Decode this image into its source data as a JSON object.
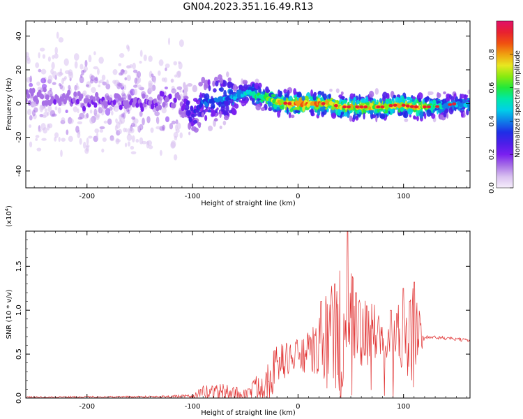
{
  "figure": {
    "title": "GN04.2023.351.16.49.R13"
  },
  "chart_data": [
    {
      "type": "heatmap",
      "xlabel": "Height of straight line (km)",
      "ylabel": "Frequency (Hz)",
      "xlim": [
        -258,
        163
      ],
      "ylim": [
        -50,
        49
      ],
      "xticks": [
        -200,
        -100,
        0,
        100
      ],
      "yticks": [
        -40,
        -20,
        0,
        20,
        40
      ],
      "colorbar": {
        "label": "Normalized spectral amplitude",
        "range": [
          0,
          1
        ],
        "ticks": [
          "0.0",
          "0.2",
          "0.4",
          "0.6",
          "0.8"
        ],
        "colormap": [
          "#f6eefb",
          "#d9c1f0",
          "#a870e6",
          "#7a1ff0",
          "#4c1ee8",
          "#1f2ee6",
          "#0f7fe8",
          "#00d0e8",
          "#00e8a8",
          "#22e83a",
          "#88ea10",
          "#e8e820",
          "#f0a010",
          "#f05010",
          "#e82030",
          "#e0106a"
        ]
      },
      "ridge": {
        "x": [
          -258,
          -200,
          -150,
          -110,
          -100,
          -90,
          -80,
          -70,
          -60,
          -50,
          -45,
          -40,
          -30,
          -20,
          -10,
          0,
          10,
          20,
          30,
          40,
          50,
          60,
          70,
          80,
          90,
          100,
          110,
          120,
          130,
          140,
          150,
          163
        ],
        "y": [
          3,
          2,
          1,
          0,
          -7,
          1,
          2,
          3,
          4,
          6,
          7,
          5,
          3,
          1,
          0,
          0,
          0,
          0,
          0,
          -2,
          -2,
          -2,
          -2,
          -2,
          -1,
          -1,
          -2,
          -2,
          -2,
          -1,
          0,
          -1
        ],
        "amplitude": [
          0.15,
          0.16,
          0.17,
          0.17,
          0.28,
          0.35,
          0.38,
          0.4,
          0.42,
          0.48,
          0.5,
          0.55,
          0.6,
          0.7,
          0.78,
          0.82,
          0.8,
          0.78,
          0.75,
          0.7,
          0.72,
          0.72,
          0.72,
          0.72,
          0.72,
          0.72,
          0.74,
          0.72,
          0.55,
          0.45,
          0.45,
          0.45
        ]
      }
    },
    {
      "type": "line",
      "xlabel": "Height of straight line (km)",
      "ylabel": "SNR (10 * v/v)",
      "yscale_label": "(x10^4)",
      "yscale_base": "(x10",
      "yscale_exp": "4",
      "yscale_close": ")",
      "xlim": [
        -258,
        163
      ],
      "ylim": [
        0,
        1.9
      ],
      "xticks": [
        -200,
        -100,
        0,
        100
      ],
      "yticks": [
        0.0,
        0.5,
        1.0,
        1.5
      ],
      "ytick_labels": [
        "0.0",
        "0.5",
        "1.0",
        "1.5"
      ],
      "color": "#e03030",
      "envelope": {
        "x": [
          -258,
          -150,
          -100,
          -90,
          -80,
          -70,
          -60,
          -50,
          -45,
          -35,
          -30,
          -25,
          -20,
          -10,
          0,
          10,
          20,
          25,
          30,
          35,
          40,
          45,
          50,
          55,
          60,
          70,
          80,
          90,
          100,
          105,
          110,
          120,
          130,
          140,
          150,
          163
        ],
        "base": [
          0.01,
          0.015,
          0.02,
          0.06,
          0.07,
          0.06,
          0.05,
          0.03,
          0.08,
          0.15,
          0.2,
          0.3,
          0.38,
          0.45,
          0.48,
          0.5,
          0.58,
          0.7,
          0.7,
          0.72,
          0.72,
          0.7,
          0.72,
          0.73,
          0.75,
          0.75,
          0.72,
          0.72,
          0.72,
          0.72,
          0.72,
          0.7,
          0.69,
          0.68,
          0.67,
          0.65
        ],
        "noise": [
          0.01,
          0.01,
          0.02,
          0.08,
          0.12,
          0.1,
          0.09,
          0.08,
          0.1,
          0.18,
          0.25,
          0.3,
          0.22,
          0.2,
          0.2,
          0.25,
          0.35,
          0.5,
          0.6,
          0.7,
          0.75,
          0.8,
          0.75,
          0.5,
          0.45,
          0.35,
          0.3,
          0.35,
          0.4,
          0.5,
          0.55,
          0.02,
          0.02,
          0.02,
          0.02,
          0.02
        ]
      },
      "peaks": [
        {
          "x": 22,
          "y": 1.1
        },
        {
          "x": 35,
          "y": 1.3
        },
        {
          "x": 40,
          "y": 1.45
        },
        {
          "x": 47,
          "y": 1.9
        },
        {
          "x": 55,
          "y": 1.2
        },
        {
          "x": 65,
          "y": 1.05
        },
        {
          "x": 88,
          "y": 1.0
        },
        {
          "x": 100,
          "y": 1.25
        },
        {
          "x": 110,
          "y": 1.32
        },
        {
          "x": 106,
          "y": 1.1
        }
      ]
    }
  ]
}
